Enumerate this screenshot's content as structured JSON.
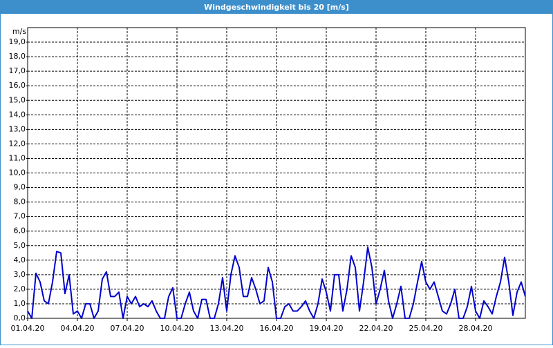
{
  "chart_data": {
    "type": "line",
    "title": "Windgeschwindigkeit bis 20 [m/s]",
    "y_label": "m/s",
    "x": [
      0,
      0.25,
      0.5,
      0.75,
      1,
      1.25,
      1.5,
      1.75,
      2,
      2.25,
      2.5,
      2.75,
      3,
      3.25,
      3.5,
      3.75,
      4,
      4.25,
      4.5,
      4.75,
      5,
      5.25,
      5.5,
      5.75,
      6,
      6.25,
      6.5,
      6.75,
      7,
      7.25,
      7.5,
      7.75,
      8,
      8.25,
      8.5,
      8.75,
      9,
      9.25,
      9.5,
      9.75,
      10,
      10.25,
      10.5,
      10.75,
      11,
      11.25,
      11.5,
      11.75,
      12,
      12.25,
      12.5,
      12.75,
      13,
      13.25,
      13.5,
      13.75,
      14,
      14.25,
      14.5,
      14.75,
      15,
      15.25,
      15.5,
      15.75,
      16,
      16.25,
      16.5,
      16.75,
      17,
      17.25,
      17.5,
      17.75,
      18,
      18.25,
      18.5,
      18.75,
      19,
      19.25,
      19.5,
      19.75,
      20,
      20.25,
      20.5,
      20.75,
      21,
      21.25,
      21.5,
      21.75,
      22,
      22.25,
      22.5,
      22.75,
      23,
      23.25,
      23.5,
      23.75,
      24,
      24.25,
      24.5,
      24.75,
      25,
      25.25,
      25.5,
      25.75,
      26,
      26.25,
      26.5,
      26.75,
      27,
      27.25,
      27.5,
      27.75,
      28,
      28.25,
      28.5,
      28.75,
      29,
      29.25,
      29.5,
      29.75,
      30
    ],
    "series": [
      {
        "color": "#0000cc",
        "values": [
          0.5,
          0,
          3.1,
          2.5,
          1.2,
          1.0,
          2.5,
          4.6,
          4.5,
          1.7,
          3.0,
          0.3,
          0.5,
          0,
          1.0,
          1.0,
          0,
          0.5,
          2.7,
          3.2,
          1.5,
          1.5,
          1.8,
          0,
          1.5,
          1.0,
          1.5,
          0.8,
          1.0,
          0.8,
          1.2,
          0.5,
          0,
          0,
          1.5,
          2.1,
          0,
          0,
          1.0,
          1.8,
          0.5,
          0,
          1.3,
          1.3,
          0,
          0,
          1.0,
          2.8,
          0.5,
          3.0,
          4.3,
          3.5,
          1.5,
          1.5,
          2.8,
          2.0,
          1.0,
          1.2,
          3.5,
          2.5,
          0,
          0,
          0.8,
          1.0,
          0.5,
          0.5,
          0.8,
          1.2,
          0.5,
          0,
          1.0,
          2.7,
          1.8,
          0.5,
          3.0,
          3.0,
          0.5,
          2.0,
          4.3,
          3.5,
          0.5,
          2.5,
          4.9,
          3.5,
          1.0,
          2.0,
          3.3,
          1.2,
          0,
          1.0,
          2.2,
          0,
          0,
          1.0,
          2.5,
          3.9,
          2.5,
          2.0,
          2.5,
          1.5,
          0.5,
          0.3,
          1.0,
          2.0,
          0,
          0,
          0.8,
          2.2,
          0.5,
          0,
          1.2,
          0.8,
          0.3,
          1.5,
          2.5,
          4.2,
          2.5,
          0.2,
          1.8,
          2.5,
          1.5
        ]
      }
    ],
    "xlim": [
      0,
      30
    ],
    "xticks": [
      {
        "value": 0,
        "label": "01.04.20"
      },
      {
        "value": 3,
        "label": "04.04.20"
      },
      {
        "value": 6,
        "label": "07.04.20"
      },
      {
        "value": 9,
        "label": "10.04.20"
      },
      {
        "value": 12,
        "label": "13.04.20"
      },
      {
        "value": 15,
        "label": "16.04.20"
      },
      {
        "value": 18,
        "label": "19.04.20"
      },
      {
        "value": 21,
        "label": "22.04.20"
      },
      {
        "value": 24,
        "label": "25.04.20"
      },
      {
        "value": 27,
        "label": "28.04.20"
      }
    ],
    "ylim": [
      0,
      20
    ],
    "yticks": [
      {
        "value": 0,
        "label": "0,0"
      },
      {
        "value": 1,
        "label": "1,0"
      },
      {
        "value": 2,
        "label": "2,0"
      },
      {
        "value": 3,
        "label": "3,0"
      },
      {
        "value": 4,
        "label": "4,0"
      },
      {
        "value": 5,
        "label": "5,0"
      },
      {
        "value": 6,
        "label": "6,0"
      },
      {
        "value": 7,
        "label": "7,0"
      },
      {
        "value": 8,
        "label": "8,0"
      },
      {
        "value": 9,
        "label": "9,0"
      },
      {
        "value": 10,
        "label": "10,0"
      },
      {
        "value": 11,
        "label": "11,0"
      },
      {
        "value": 12,
        "label": "12,0"
      },
      {
        "value": 13,
        "label": "13,0"
      },
      {
        "value": 14,
        "label": "14,0"
      },
      {
        "value": 15,
        "label": "15,0"
      },
      {
        "value": 16,
        "label": "16,0"
      },
      {
        "value": 17,
        "label": "17,0"
      },
      {
        "value": 18,
        "label": "18,0"
      },
      {
        "value": 19,
        "label": "19,0"
      }
    ],
    "grid": true
  }
}
